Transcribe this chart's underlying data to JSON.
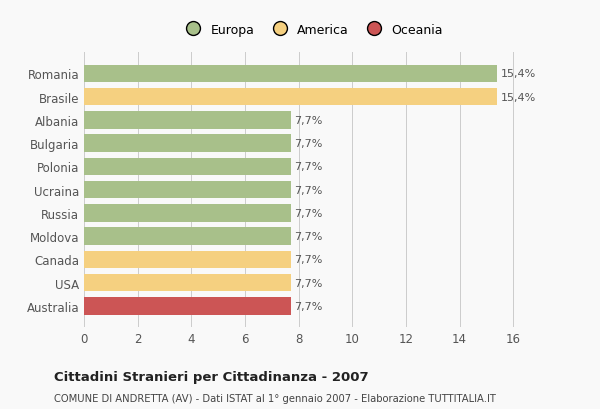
{
  "countries": [
    "Romania",
    "Brasile",
    "Albania",
    "Bulgaria",
    "Polonia",
    "Ucraina",
    "Russia",
    "Moldova",
    "Canada",
    "USA",
    "Australia"
  ],
  "values": [
    15.4,
    15.4,
    7.7,
    7.7,
    7.7,
    7.7,
    7.7,
    7.7,
    7.7,
    7.7,
    7.7
  ],
  "labels": [
    "15,4%",
    "15,4%",
    "7,7%",
    "7,7%",
    "7,7%",
    "7,7%",
    "7,7%",
    "7,7%",
    "7,7%",
    "7,7%",
    "7,7%"
  ],
  "continents": [
    "Europa",
    "America",
    "Europa",
    "Europa",
    "Europa",
    "Europa",
    "Europa",
    "Europa",
    "America",
    "America",
    "Oceania"
  ],
  "colors": {
    "Europa": "#a8c08a",
    "America": "#f5d080",
    "Oceania": "#cc5555"
  },
  "xlim": [
    0,
    17
  ],
  "xticks": [
    0,
    2,
    4,
    6,
    8,
    10,
    12,
    14,
    16
  ],
  "title": "Cittadini Stranieri per Cittadinanza - 2007",
  "subtitle": "COMUNE DI ANDRETTA (AV) - Dati ISTAT al 1° gennaio 2007 - Elaborazione TUTTITALIA.IT",
  "legend_labels": [
    "Europa",
    "America",
    "Oceania"
  ],
  "legend_colors": [
    "#a8c08a",
    "#f5d080",
    "#cc5555"
  ],
  "bg_color": "#f9f9f9",
  "grid_color": "#cccccc"
}
